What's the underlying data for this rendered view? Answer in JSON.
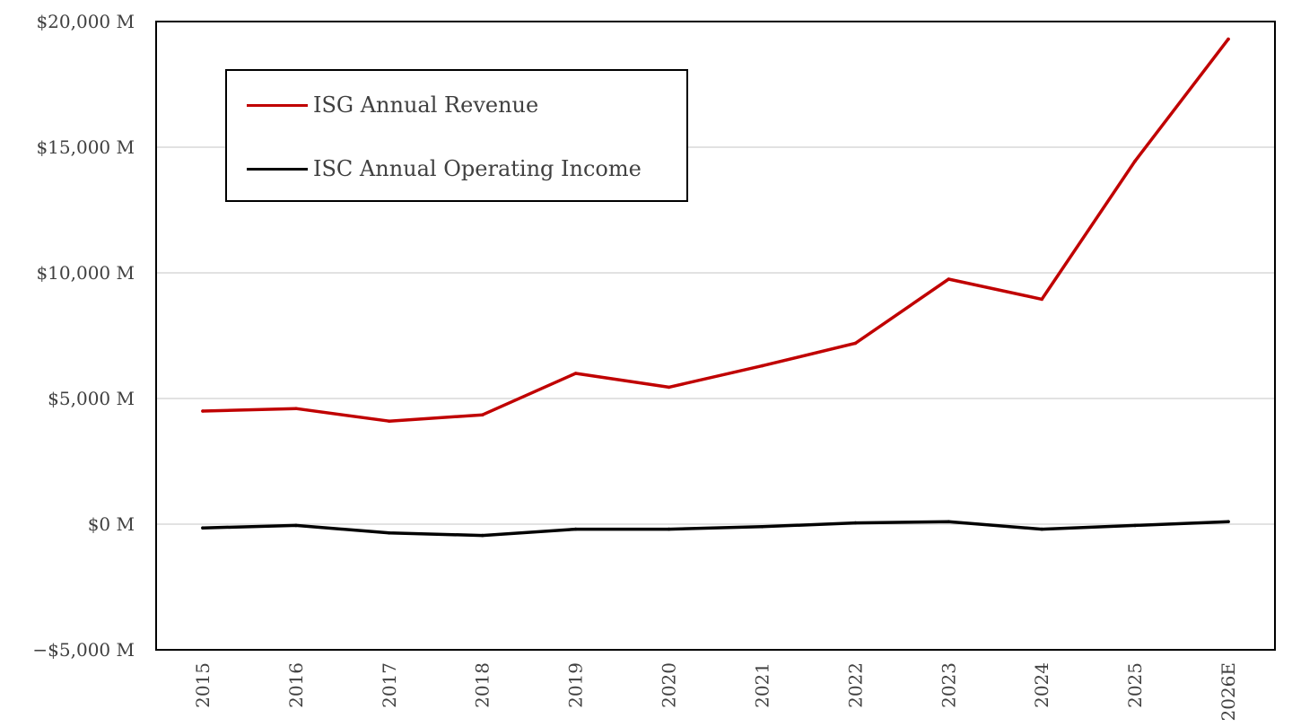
{
  "chart_data": {
    "type": "line",
    "categories": [
      "2015",
      "2016",
      "2017",
      "2018",
      "2019",
      "2020",
      "2021",
      "2022",
      "2023",
      "2024",
      "2025",
      "2026E"
    ],
    "ylim": [
      -5000,
      20000
    ],
    "yticks": [
      20000,
      15000,
      10000,
      5000,
      0,
      -5000
    ],
    "ytick_labels": [
      "$20,000 M",
      "$15,000 M",
      "$10,000 M",
      "$5,000 M",
      "$0 M",
      "−$5,000 M"
    ],
    "grid": true,
    "legend_position": "top-left",
    "series": [
      {
        "name": "ISG Annual Revenue",
        "color": "#c00000",
        "values": [
          4500,
          4600,
          4100,
          4350,
          6000,
          5450,
          6300,
          7200,
          9750,
          8950,
          14450,
          19300
        ]
      },
      {
        "name": "ISC Annual Operating Income",
        "color": "#000000",
        "values": [
          -150,
          -50,
          -350,
          -450,
          -200,
          -200,
          -100,
          50,
          100,
          -200,
          -50,
          100
        ]
      }
    ]
  }
}
